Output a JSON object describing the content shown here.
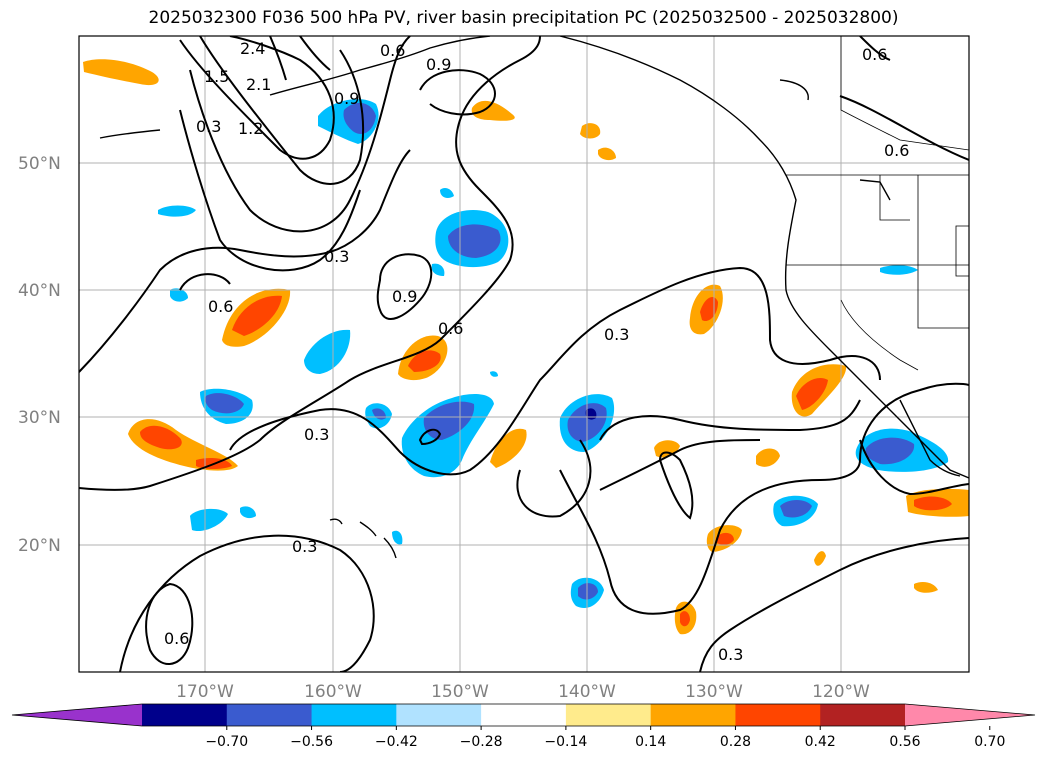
{
  "title": "2025032300 F036 500 hPa PV, river basin precipitation PC (2025032500 - 2025032800)",
  "map": {
    "projection": "PlateCarree",
    "lon_range": [
      180,
      -110
    ],
    "lat_range": [
      10,
      60
    ],
    "lat_labels": [
      "50°N",
      "40°N",
      "30°N",
      "20°N"
    ],
    "lon_labels": [
      "170°W",
      "160°W",
      "150°W",
      "140°W",
      "130°W",
      "120°W"
    ],
    "grid": true
  },
  "contour_labels": [
    "2.4",
    "2.1",
    "1.5",
    "1.2",
    "0.9",
    "0.6",
    "0.3",
    "0.3",
    "0.3",
    "0.3",
    "0.3",
    "0.6",
    "0.6",
    "0.6",
    "0.9",
    "0.9",
    "0.6",
    "0.6",
    "0.3"
  ],
  "colorbar": {
    "ticks": [
      "−0.70",
      "−0.56",
      "−0.42",
      "−0.28",
      "−0.14",
      "0.14",
      "0.28",
      "0.42",
      "0.56",
      "0.70"
    ],
    "colors": [
      "#9932cc",
      "#00008b",
      "#3a5bcf",
      "#00bfff",
      "#b0e2ff",
      "#ffffff",
      "#ffeb8c",
      "#ffa500",
      "#ff4500",
      "#b22222",
      "#ff88aa"
    ],
    "extend": "both"
  },
  "chart_data": {
    "type": "heatmap",
    "title": "2025032300 F036 500 hPa PV, river basin precipitation PC (2025032500 - 2025032800)",
    "fields": [
      "500 hPa PV (contours)",
      "river basin precipitation PC (shaded)"
    ],
    "xlabel": "",
    "ylabel": "",
    "contour_levels_PV": [
      0.3,
      0.6,
      0.9,
      1.2,
      1.5,
      2.1,
      2.4
    ],
    "shading_levels": [
      -0.7,
      -0.56,
      -0.42,
      -0.28,
      -0.14,
      0.14,
      0.28,
      0.42,
      0.56,
      0.7
    ],
    "xlim": [
      "180°",
      "110°W"
    ],
    "ylim": [
      "10°N",
      "60°N"
    ]
  }
}
